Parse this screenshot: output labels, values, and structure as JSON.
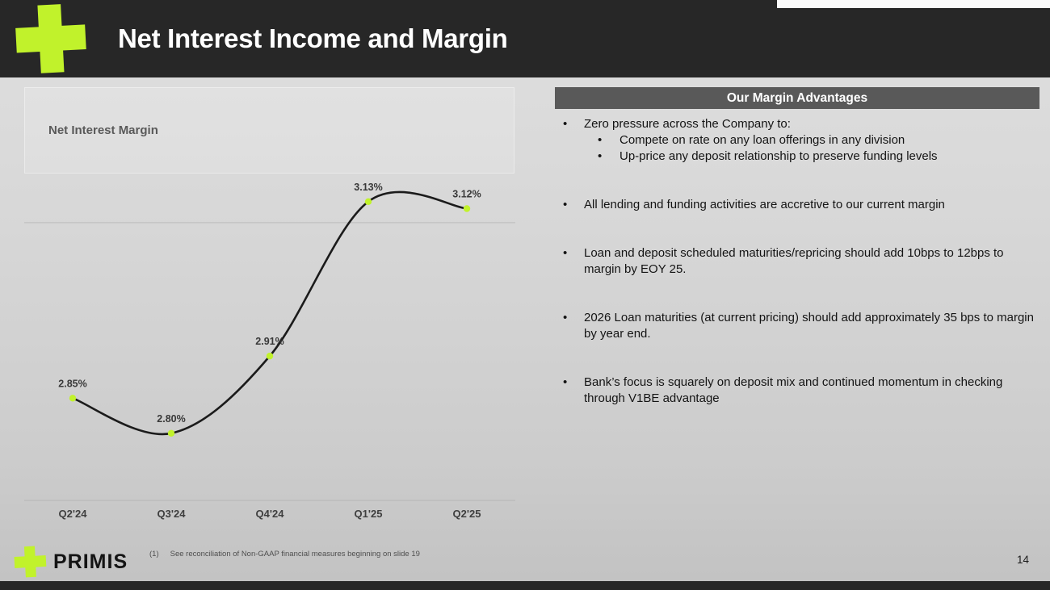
{
  "header": {
    "title": "Net Interest Income and Margin"
  },
  "chart_data": {
    "type": "line",
    "title": "Net Interest Margin",
    "categories": [
      "Q2'24",
      "Q3'24",
      "Q4'24",
      "Q1'25",
      "Q2'25"
    ],
    "values": [
      2.85,
      2.8,
      2.91,
      3.13,
      3.12
    ],
    "labels": [
      "2.85%",
      "2.80%",
      "2.91%",
      "3.13%",
      "3.12%"
    ],
    "ylim": [
      2.74,
      3.17
    ],
    "gridlines": [
      3.1
    ],
    "line_color": "#1b1b1b",
    "marker_color": "#c1f22b",
    "legend": "none",
    "xlabel": "",
    "ylabel": ""
  },
  "panel": {
    "title": "Our Margin Advantages",
    "bullets": [
      {
        "text": "Zero pressure across the Company to:",
        "sub": [
          "Compete on rate on any loan offerings in any division",
          "Up-price any deposit relationship to preserve funding levels"
        ]
      },
      {
        "text": "All lending and funding activities are accretive to our current margin"
      },
      {
        "text": "Loan and deposit scheduled maturities/repricing should add 10bps to 12bps to margin by EOY 25."
      },
      {
        "text": "2026 Loan maturities (at current pricing) should add approximately 35 bps to margin by year end."
      },
      {
        "text": "Bank’s focus is squarely on deposit mix and continued momentum in checking through V1BE advantage"
      }
    ]
  },
  "footer": {
    "footnote_number": "(1)",
    "footnote_text": "See reconciliation of Non-GAAP financial measures beginning on slide 19",
    "logo_text": "PRIMIS",
    "page_number": "14"
  },
  "icons": {
    "brand_logo": "primis-plus-icon",
    "bullet": "•"
  },
  "colors": {
    "accent": "#c1f22b",
    "header_bg": "#272727",
    "panel_header_bg": "#595959"
  }
}
